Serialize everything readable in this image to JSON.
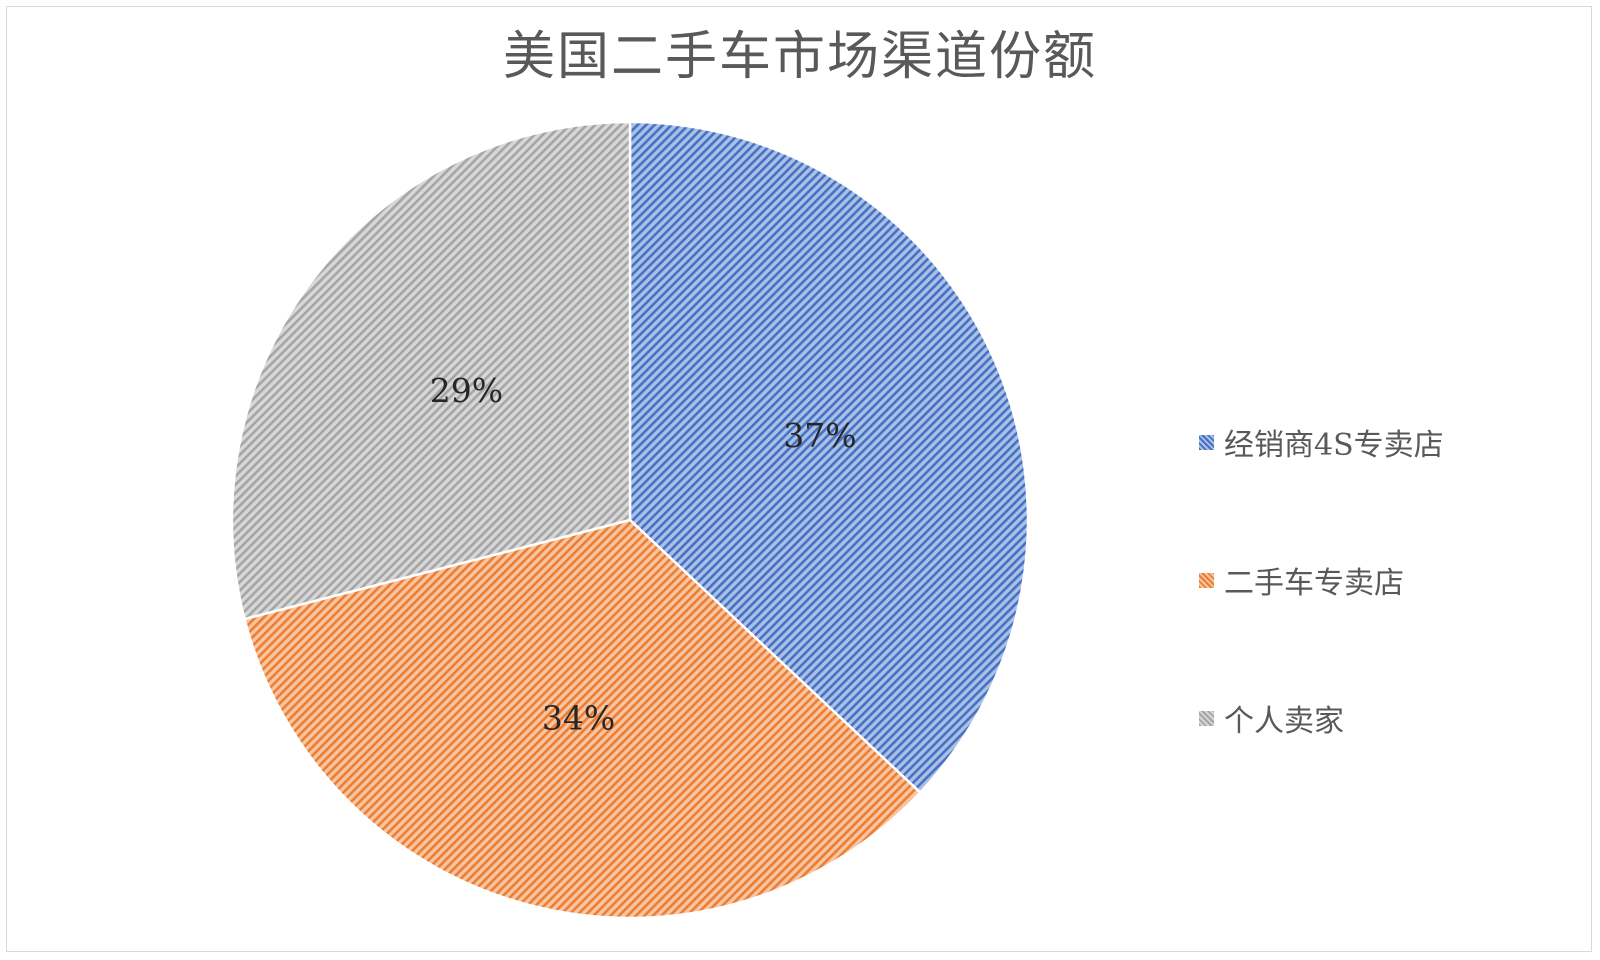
{
  "chart_data": {
    "type": "pie",
    "title": "美国二手车市场渠道份额",
    "slices": [
      {
        "label": "经销商4S专卖店",
        "value": 37,
        "display": "37%",
        "color": "#4472c4"
      },
      {
        "label": "二手车专卖店",
        "value": 34,
        "display": "34%",
        "color": "#ed7d31"
      },
      {
        "label": "个人卖家",
        "value": 29,
        "display": "29%",
        "color": "#a5a5a5"
      }
    ],
    "legend_position": "right"
  }
}
